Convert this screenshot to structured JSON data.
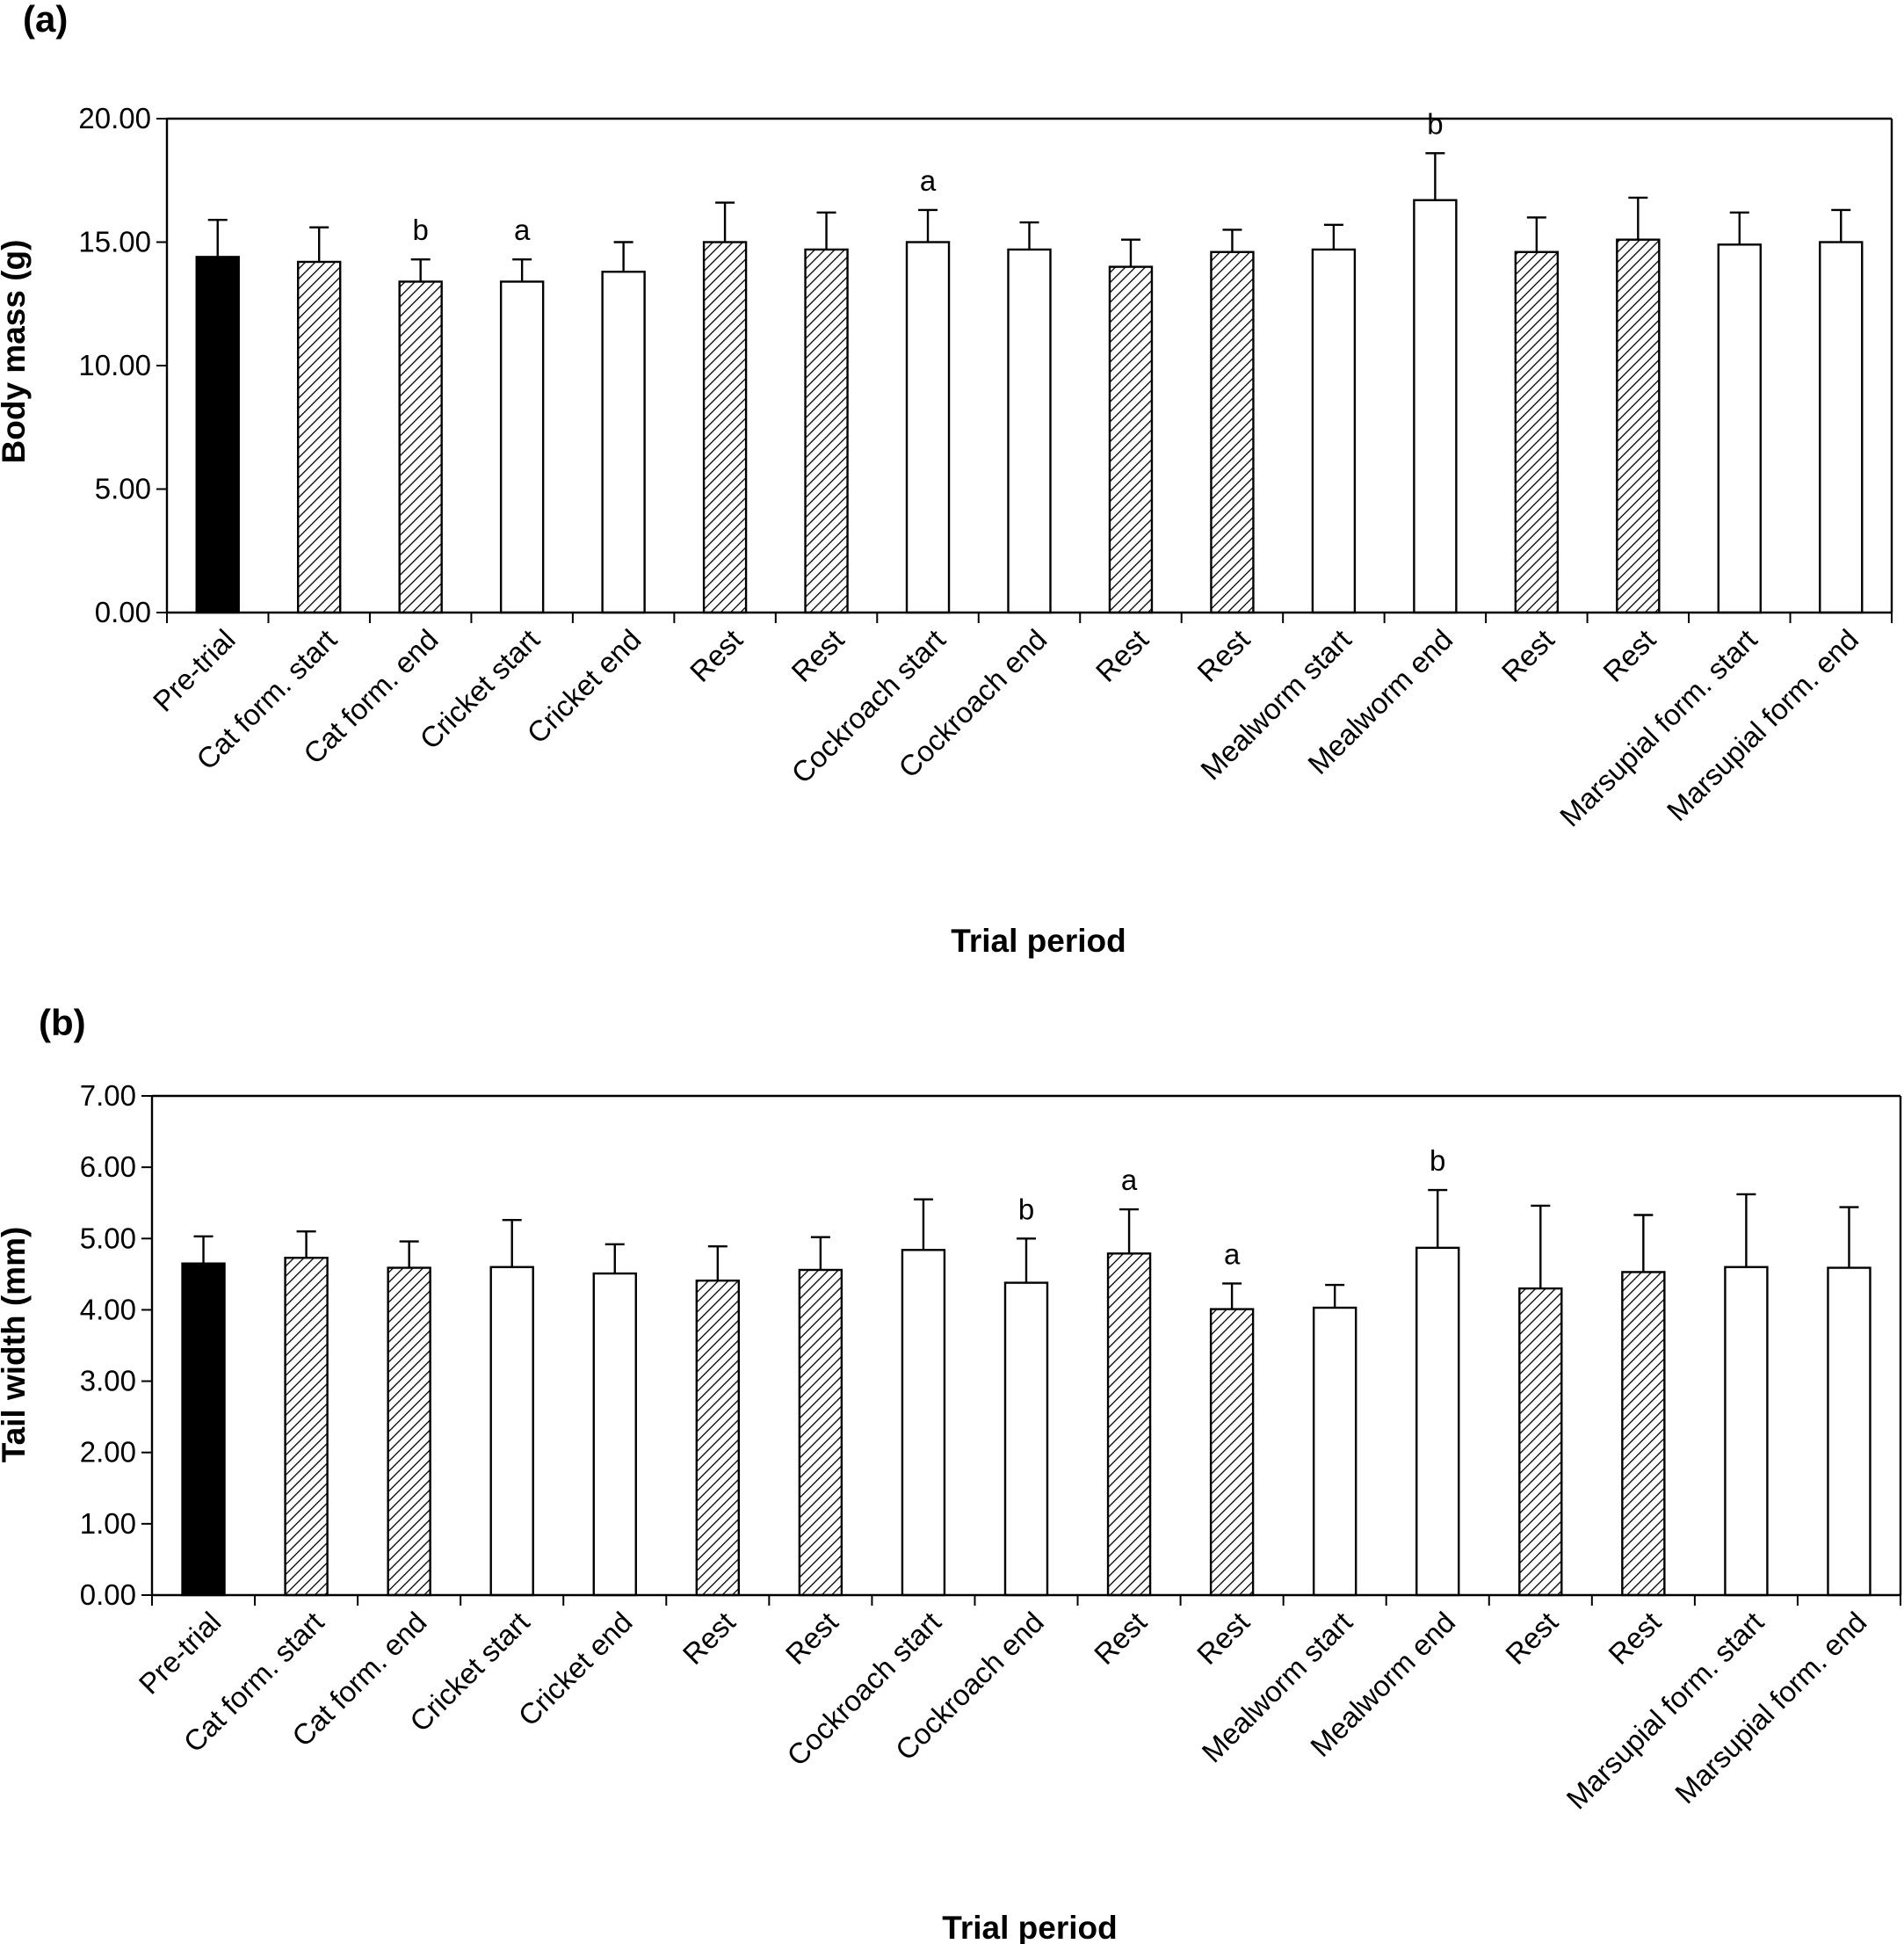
{
  "chart_data": [
    {
      "type": "bar",
      "panel_label": "(a)",
      "ylabel": "Body mass (g)",
      "xlabel": "Trial period",
      "ylim": [
        0,
        20
      ],
      "yticks": [
        "0.00",
        "5.00",
        "10.00",
        "15.00",
        "20.00"
      ],
      "frame": "left-top-right",
      "grid": false,
      "categories": [
        "Pre-trial",
        "Cat form. start",
        "Cat form. end",
        "Cricket start",
        "Cricket end",
        "Rest",
        "Rest",
        "Cockroach start",
        "Cockroach end",
        "Rest",
        "Rest",
        "Mealworm start",
        "Mealworm end",
        "Rest",
        "Rest",
        "Marsupial form. start",
        "Marsupial form. end"
      ],
      "values": [
        14.4,
        14.2,
        13.4,
        13.4,
        13.8,
        15.0,
        14.7,
        15.0,
        14.7,
        14.0,
        14.6,
        14.7,
        16.7,
        14.6,
        15.1,
        14.9,
        15.0
      ],
      "errors": [
        1.5,
        1.4,
        0.9,
        0.9,
        1.2,
        1.6,
        1.5,
        1.3,
        1.1,
        1.1,
        0.9,
        1.0,
        1.9,
        1.4,
        1.7,
        1.3,
        1.3
      ],
      "fills": [
        "black",
        "hatched",
        "hatched",
        "white",
        "white",
        "hatched",
        "hatched",
        "white",
        "white",
        "hatched",
        "hatched",
        "white",
        "white",
        "hatched",
        "hatched",
        "white",
        "white"
      ],
      "annotations": [
        "",
        "",
        "b",
        "a",
        "",
        "",
        "",
        "a",
        "",
        "",
        "",
        "",
        "b",
        "",
        "",
        "",
        ""
      ]
    },
    {
      "type": "bar",
      "panel_label": "(b)",
      "ylabel": "Tail width (mm)",
      "xlabel": "Trial period",
      "ylim": [
        0,
        7
      ],
      "yticks": [
        "0.00",
        "1.00",
        "2.00",
        "3.00",
        "4.00",
        "5.00",
        "6.00",
        "7.00"
      ],
      "frame": "box",
      "grid": false,
      "categories": [
        "Pre-trial",
        "Cat form. start",
        "Cat form. end",
        "Cricket start",
        "Cricket end",
        "Rest",
        "Rest",
        "Cockroach start",
        "Cockroach end",
        "Rest",
        "Rest",
        "Mealworm start",
        "Mealworm end",
        "Rest",
        "Rest",
        "Marsupial form. start",
        "Marsupial form. end"
      ],
      "values": [
        4.65,
        4.73,
        4.59,
        4.6,
        4.51,
        4.41,
        4.56,
        4.84,
        4.38,
        4.79,
        4.01,
        4.03,
        4.87,
        4.3,
        4.53,
        4.6,
        4.59
      ],
      "errors": [
        0.38,
        0.37,
        0.37,
        0.66,
        0.41,
        0.48,
        0.46,
        0.71,
        0.62,
        0.62,
        0.36,
        0.32,
        0.81,
        1.16,
        0.8,
        1.02,
        0.85
      ],
      "fills": [
        "black",
        "hatched",
        "hatched",
        "white",
        "white",
        "hatched",
        "hatched",
        "white",
        "white",
        "hatched",
        "hatched",
        "white",
        "white",
        "hatched",
        "hatched",
        "white",
        "white"
      ],
      "annotations": [
        "",
        "",
        "",
        "",
        "",
        "",
        "",
        "",
        "b",
        "a",
        "a",
        "",
        "b",
        "",
        "",
        "",
        ""
      ]
    }
  ]
}
